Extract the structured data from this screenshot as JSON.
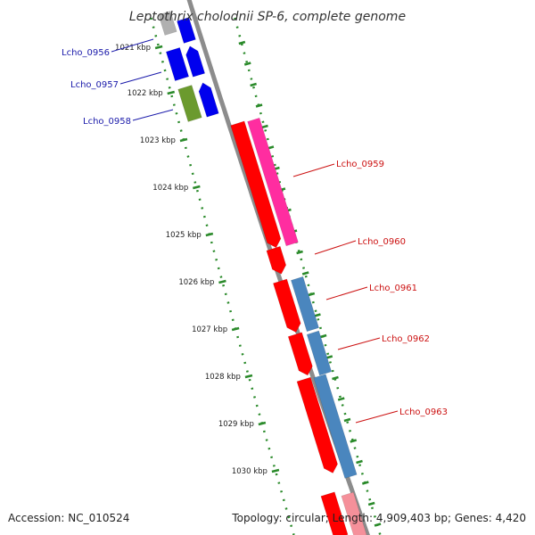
{
  "title": "Leptothrix cholodnii SP-6, complete genome",
  "footer": {
    "accession": "Accession: NC_010524",
    "summary": "Topology: circular; Length: 4,909,403 bp; Genes: 4,420"
  },
  "colors": {
    "backbone": "#8c8c8c",
    "ticks": "#2a8a2a",
    "forward_label": "#1a1aaa",
    "reverse_label": "#cc1111",
    "red_gene": "#ff0000",
    "magenta_gene": "#ff2da0",
    "steel_gene": "#4a86be",
    "pink_gene": "#f5909a",
    "blue_gene": "#0000ee",
    "olive_gene": "#6b9a2e",
    "grey_gene": "#b0b0b0"
  },
  "ticks": [
    {
      "label": "1021 kbp"
    },
    {
      "label": "1022 kbp"
    },
    {
      "label": "1023 kbp"
    },
    {
      "label": "1024 kbp"
    },
    {
      "label": "1025 kbp"
    },
    {
      "label": "1026 kbp"
    },
    {
      "label": "1027 kbp"
    },
    {
      "label": "1028 kbp"
    },
    {
      "label": "1029 kbp"
    },
    {
      "label": "1030 kbp"
    }
  ],
  "gene_labels": [
    {
      "label": "Lcho_0956",
      "side": "left"
    },
    {
      "label": "Lcho_0957",
      "side": "left"
    },
    {
      "label": "Lcho_0958",
      "side": "left"
    },
    {
      "label": "Lcho_0959",
      "side": "right"
    },
    {
      "label": "Lcho_0960",
      "side": "right"
    },
    {
      "label": "Lcho_0961",
      "side": "right"
    },
    {
      "label": "Lcho_0962",
      "side": "right"
    },
    {
      "label": "Lcho_0963",
      "side": "right"
    }
  ]
}
